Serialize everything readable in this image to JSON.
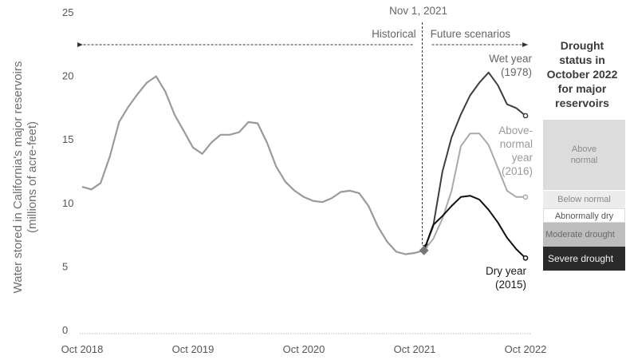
{
  "chart_data": {
    "type": "line",
    "ylabel_lines": [
      "Water stored in California's major reservoirs",
      "(millions of acre-feet)"
    ],
    "ylim": [
      0,
      25
    ],
    "yticks": [
      0,
      5,
      10,
      15,
      20,
      25
    ],
    "xlim": [
      "2018-10",
      "2022-10"
    ],
    "xticks": [
      {
        "date": "2018-10",
        "label": "Oct 2018"
      },
      {
        "date": "2019-10",
        "label": "Oct 2019"
      },
      {
        "date": "2020-10",
        "label": "Oct 2020"
      },
      {
        "date": "2021-10",
        "label": "Oct 2021"
      },
      {
        "date": "2022-10",
        "label": "Oct 2022"
      }
    ],
    "marker": {
      "date": "2021-11",
      "label": "Nov 1, 2021"
    },
    "region_labels": {
      "historical": "Historical",
      "future": "Future scenarios"
    },
    "series": [
      {
        "name": "Historical",
        "color": "#9a9a9a",
        "x": [
          "2018-10",
          "2018-11",
          "2018-12",
          "2019-01",
          "2019-02",
          "2019-03",
          "2019-04",
          "2019-05",
          "2019-06",
          "2019-07",
          "2019-08",
          "2019-09",
          "2019-10",
          "2019-11",
          "2019-12",
          "2020-01",
          "2020-02",
          "2020-03",
          "2020-04",
          "2020-05",
          "2020-06",
          "2020-07",
          "2020-08",
          "2020-09",
          "2020-10",
          "2020-11",
          "2020-12",
          "2021-01",
          "2021-02",
          "2021-03",
          "2021-04",
          "2021-05",
          "2021-06",
          "2021-07",
          "2021-08",
          "2021-09",
          "2021-10",
          "2021-11"
        ],
        "y": [
          11.3,
          11.1,
          11.6,
          13.7,
          16.4,
          17.6,
          18.6,
          19.5,
          20.0,
          18.8,
          17.0,
          15.7,
          14.4,
          13.9,
          14.8,
          15.4,
          15.4,
          15.6,
          16.4,
          16.3,
          14.8,
          12.9,
          11.7,
          11.0,
          10.5,
          10.2,
          10.1,
          10.4,
          10.9,
          11.0,
          10.8,
          9.8,
          8.2,
          7.0,
          6.2,
          6.0,
          6.1,
          6.3
        ]
      },
      {
        "name": "Wet year (1978)",
        "label_lines": [
          "Wet year",
          "(1978)"
        ],
        "color": "#3e3e3e",
        "x": [
          "2021-11",
          "2021-12",
          "2022-01",
          "2022-02",
          "2022-03",
          "2022-04",
          "2022-05",
          "2022-06",
          "2022-07",
          "2022-08",
          "2022-09",
          "2022-10"
        ],
        "y": [
          6.3,
          8.2,
          12.5,
          15.2,
          17.0,
          18.5,
          19.5,
          20.3,
          19.3,
          17.8,
          17.5,
          16.9
        ]
      },
      {
        "name": "Above-normal year (2016)",
        "label_lines": [
          "Above-",
          "normal",
          "year",
          "(2016)"
        ],
        "color": "#a9a9a9",
        "x": [
          "2021-11",
          "2021-12",
          "2022-01",
          "2022-02",
          "2022-03",
          "2022-04",
          "2022-05",
          "2022-06",
          "2022-07",
          "2022-08",
          "2022-09",
          "2022-10"
        ],
        "y": [
          6.3,
          7.2,
          8.8,
          11.0,
          14.5,
          15.5,
          15.5,
          14.6,
          12.8,
          11.0,
          10.5,
          10.5
        ]
      },
      {
        "name": "Dry year (2015)",
        "label_lines": [
          "Dry year",
          "(2015)"
        ],
        "color": "#101010",
        "x": [
          "2021-11",
          "2021-12",
          "2022-01",
          "2022-02",
          "2022-03",
          "2022-04",
          "2022-05",
          "2022-06",
          "2022-07",
          "2022-08",
          "2022-09",
          "2022-10"
        ],
        "y": [
          6.3,
          8.3,
          9.0,
          9.8,
          10.5,
          10.6,
          10.3,
          9.5,
          8.5,
          7.3,
          6.4,
          5.7
        ]
      }
    ]
  },
  "sidebar": {
    "title_lines": [
      "Drought",
      "status in",
      "October 2022",
      "for major",
      "reservoirs"
    ],
    "bands": [
      {
        "key": "above",
        "label": "Above normal"
      },
      {
        "key": "below",
        "label": "Below normal"
      },
      {
        "key": "abn",
        "label": "Abnormally dry"
      },
      {
        "key": "mod",
        "label": "Moderate drought"
      },
      {
        "key": "sev",
        "label": "Severe drought"
      }
    ]
  }
}
